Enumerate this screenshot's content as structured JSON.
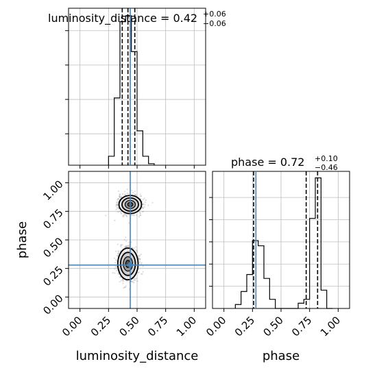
{
  "chart_data": {
    "type": "corner",
    "parameters": [
      {
        "name": "luminosity_distance",
        "xlabel": "luminosity_distance",
        "title_label": "luminosity_distance = 0.42",
        "title_plus": "+0.06",
        "title_minus": "−0.06",
        "median": 0.42,
        "quantiles": [
          0.37,
          0.42,
          0.48
        ],
        "truth": 0.44,
        "range": [
          -0.1,
          1.1
        ],
        "ticks": [
          0.0,
          0.25,
          0.5,
          0.75,
          1.0
        ],
        "tick_labels": [
          "0.00",
          "0.25",
          "0.50",
          "0.75",
          "1.00"
        ],
        "hist_bin_edges": [
          0.25,
          0.3,
          0.35,
          0.4,
          0.45,
          0.5,
          0.55,
          0.6,
          0.65
        ],
        "hist_density": [
          0.06,
          0.45,
          0.96,
          1.0,
          0.76,
          0.23,
          0.06,
          0.01
        ]
      },
      {
        "name": "phase",
        "xlabel": "phase",
        "ylabel": "phase",
        "title_label": "phase = 0.72",
        "title_plus": "+0.10",
        "title_minus": "−0.46",
        "median": 0.72,
        "quantiles": [
          0.26,
          0.72,
          0.82
        ],
        "truth": 0.28,
        "range": [
          -0.1,
          1.1
        ],
        "ticks": [
          0.0,
          0.25,
          0.5,
          0.75,
          1.0
        ],
        "tick_labels": [
          "0.00",
          "0.25",
          "0.50",
          "0.75",
          "1.00"
        ],
        "hist_bin_edges": [
          0.1,
          0.15,
          0.2,
          0.25,
          0.3,
          0.35,
          0.4,
          0.45,
          0.5,
          0.55,
          0.6,
          0.65,
          0.7,
          0.75,
          0.8,
          0.85,
          0.9,
          0.95
        ],
        "hist_density": [
          0.03,
          0.13,
          0.26,
          0.52,
          0.48,
          0.23,
          0.07,
          0.0,
          0.0,
          0.0,
          0.0,
          0.04,
          0.07,
          0.69,
          1.0,
          0.14,
          0.0
        ]
      }
    ],
    "joint": {
      "x_param": "luminosity_distance",
      "y_param": "phase",
      "modes": [
        {
          "x": 0.44,
          "y": 0.81,
          "sx": 0.05,
          "sy": 0.04
        },
        {
          "x": 0.42,
          "y": 0.29,
          "sx": 0.045,
          "sy": 0.07
        }
      ]
    },
    "grid": true,
    "colors": {
      "truth": "#4682b4",
      "hist": "#000000",
      "grid": "#bdbdbd",
      "samples": "#9a9a9a"
    }
  }
}
